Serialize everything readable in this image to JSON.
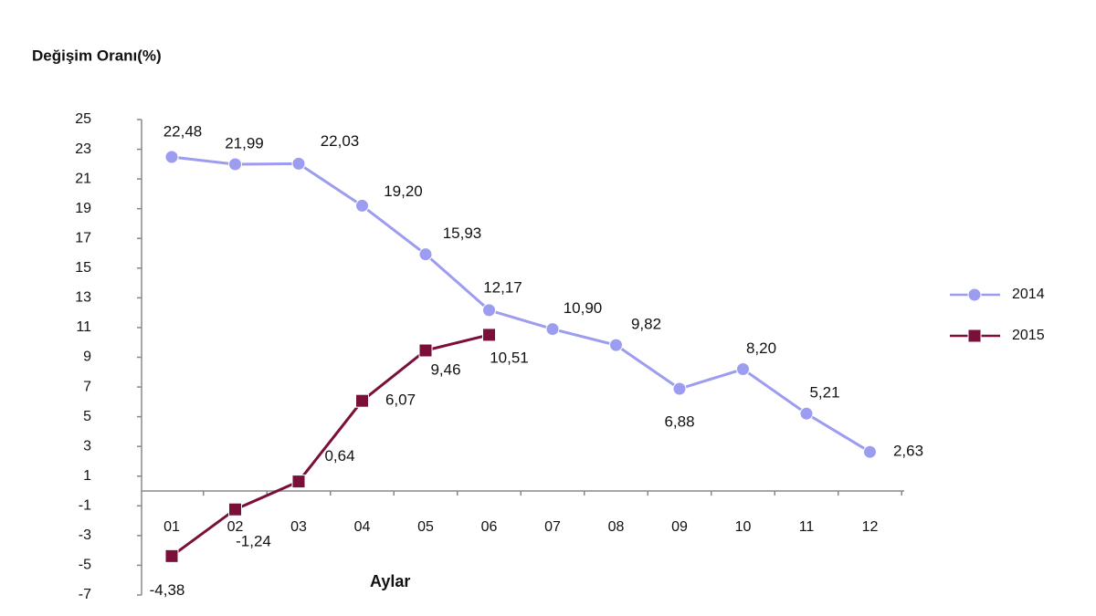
{
  "chart_data": {
    "type": "line",
    "y_label": "Değişim Oranı(%)",
    "x_label": "Aylar",
    "categories": [
      "01",
      "02",
      "03",
      "04",
      "05",
      "06",
      "07",
      "08",
      "09",
      "10",
      "11",
      "12"
    ],
    "series": [
      {
        "name": "2014",
        "color": "#9c9cf0",
        "marker": "circle",
        "values": [
          22.48,
          21.99,
          22.03,
          19.2,
          15.93,
          12.17,
          10.9,
          9.82,
          6.88,
          8.2,
          5.21,
          2.63
        ],
        "value_labels": [
          "22,48",
          "21,99",
          "22,03",
          "19,20",
          "15,93",
          "12,17",
          "10,90",
          "9,82",
          "6,88",
          "8,20",
          "5,21",
          "2,63"
        ]
      },
      {
        "name": "2015",
        "color": "#7a0f3a",
        "marker": "square",
        "values": [
          -4.38,
          -1.24,
          0.64,
          6.07,
          9.46,
          10.51,
          null,
          null,
          null,
          null,
          null,
          null
        ],
        "value_labels": [
          "-4,38",
          "-1,24",
          "0,64",
          "6,07",
          "9,46",
          "10,51",
          null,
          null,
          null,
          null,
          null,
          null
        ]
      }
    ],
    "ylim": [
      -7,
      25
    ],
    "yticks": [
      25,
      23,
      21,
      19,
      17,
      15,
      13,
      11,
      9,
      7,
      5,
      3,
      1,
      -1,
      -3,
      -5,
      -7
    ],
    "legend": "right"
  }
}
